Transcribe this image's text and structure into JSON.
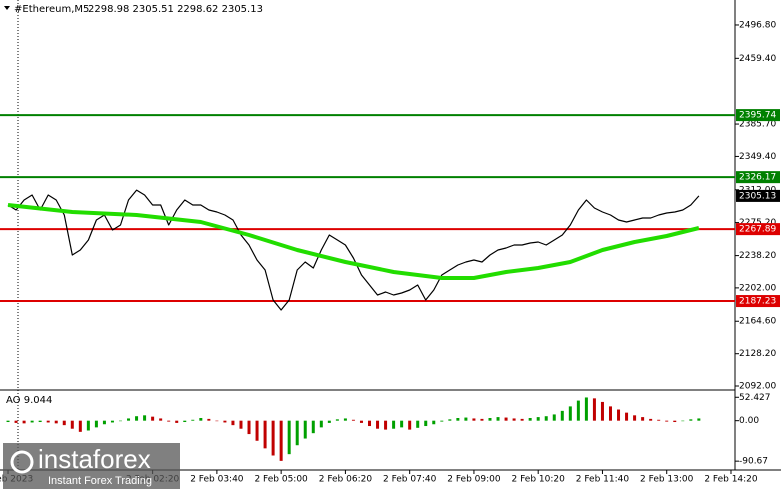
{
  "chart_data": [
    {
      "type": "line",
      "title": "#Ethereum,M5",
      "subtitle": "2298.98 2305.51 2298.62 2305.13",
      "x": [
        0,
        1,
        2,
        3,
        4,
        5,
        6,
        7,
        8,
        9,
        10,
        11,
        12,
        13,
        14,
        15,
        16,
        17,
        18,
        19,
        20,
        21,
        22,
        23,
        24,
        25,
        26,
        27,
        28,
        29,
        30,
        31,
        32,
        33,
        34,
        35,
        36,
        37,
        38,
        39,
        40,
        41,
        42,
        43,
        44,
        45,
        46,
        47,
        48,
        49,
        50,
        51,
        52,
        53,
        54,
        55,
        56,
        57,
        58,
        59,
        60,
        61,
        62,
        63,
        64,
        65,
        66,
        67,
        68,
        69,
        70,
        71,
        72,
        73,
        74,
        75,
        76,
        77,
        78,
        79,
        80,
        81,
        82,
        83,
        84,
        85,
        86
      ],
      "series": [
        {
          "color": "#000000",
          "values": [
            2294.9,
            2289.3,
            2300.5,
            2306.1,
            2289.3,
            2306.1,
            2300.5,
            2283.7,
            2238.9,
            2244.5,
            2255.7,
            2278.1,
            2283.7,
            2266.9,
            2272.5,
            2300.5,
            2311.7,
            2306.1,
            2294.9,
            2294.9,
            2272.5,
            2289.3,
            2300.5,
            2294.9,
            2294.9,
            2289.3,
            2287.1,
            2283.7,
            2278.1,
            2261.3,
            2250.1,
            2233.3,
            2222.0,
            2188.4,
            2177.2,
            2188.4,
            2222.0,
            2231.0,
            2224.3,
            2244.5,
            2261.3,
            2255.7,
            2250.1,
            2235.5,
            2216.4,
            2205.2,
            2194.0,
            2197.4,
            2194.0,
            2196.3,
            2199.6,
            2205.2,
            2188.4,
            2199.6,
            2216.4,
            2222.0,
            2227.7,
            2231.0,
            2233.3,
            2231.0,
            2238.9,
            2244.5,
            2246.7,
            2250.1,
            2250.1,
            2252.3,
            2253.4,
            2250.1,
            2255.7,
            2261.3,
            2272.5,
            2289.3,
            2300.5,
            2291.6,
            2287.1,
            2283.7,
            2278.1,
            2275.9,
            2278.1,
            2280.4,
            2280.4,
            2283.7,
            2286.0,
            2287.1,
            2289.3,
            2294.9,
            2305.13
          ]
        },
        {
          "color": "#22dd00",
          "x": [
            0,
            8,
            16,
            24,
            30,
            36,
            42,
            48,
            54,
            58,
            62,
            66,
            70,
            74,
            78,
            82,
            86
          ],
          "values": [
            2294.9,
            2287.1,
            2283.7,
            2275.9,
            2261.3,
            2244.5,
            2231.0,
            2219.8,
            2213.1,
            2213.1,
            2219.8,
            2224.3,
            2231.0,
            2244.5,
            2253.4,
            2260.2,
            2269.1
          ]
        }
      ],
      "levels": [
        {
          "value": 2395.74,
          "color": "#008000"
        },
        {
          "value": 2326.17,
          "color": "#008000"
        },
        {
          "value": 2267.89,
          "color": "#dd0000"
        },
        {
          "value": 2187.23,
          "color": "#dd0000"
        }
      ],
      "xlim": [
        -1,
        90.5
      ],
      "xticks": [
        {
          "value": 0,
          "label": "1 Feb 2023"
        },
        {
          "value": 18,
          "label": "2 Feb 02:20"
        },
        {
          "value": 26,
          "label": "2 Feb 03:40"
        },
        {
          "value": 34,
          "label": "2 Feb 05:00"
        },
        {
          "value": 42,
          "label": "2 Feb 06:20"
        },
        {
          "value": 50,
          "label": "2 Feb 07:40"
        },
        {
          "value": 58,
          "label": "2 Feb 09:00"
        },
        {
          "value": 66,
          "label": "2 Feb 10:20"
        },
        {
          "value": 74,
          "label": "2 Feb 11:40"
        },
        {
          "value": 82,
          "label": "2 Feb 13:00"
        },
        {
          "value": 90,
          "label": "2 Feb 14:20"
        }
      ],
      "ylim": [
        2087.5,
        2524.8
      ],
      "yticks": [
        {
          "value": 2496.8,
          "label": "2496.80"
        },
        {
          "value": 2459.4,
          "label": "2459.40"
        },
        {
          "value": 2385.7,
          "label": "2385.70"
        },
        {
          "value": 2349.4,
          "label": "2349.40"
        },
        {
          "value": 2312,
          "label": "2312.00"
        },
        {
          "value": 2275.2,
          "label": "2275.20"
        },
        {
          "value": 2238.2,
          "label": "2238.20"
        },
        {
          "value": 2202,
          "label": "2202.00"
        },
        {
          "value": 2164.6,
          "label": "2164.60"
        },
        {
          "value": 2128.2,
          "label": "2128.20"
        },
        {
          "value": 2092,
          "label": "2092.00"
        }
      ]
    },
    {
      "type": "bar",
      "title": "AO 9.044",
      "up_color": "#00a000",
      "down_color": "#c00000",
      "values": [
        -3,
        -5,
        -6,
        -4,
        -3,
        -4,
        -6,
        -10,
        -18,
        -25,
        -22,
        -15,
        -8,
        -4,
        0,
        5,
        10,
        12,
        9,
        5,
        -2,
        -5,
        -3,
        2,
        6,
        4,
        0,
        -4,
        -10,
        -18,
        -30,
        -45,
        -62,
        -78,
        -90,
        -75,
        -55,
        -40,
        -28,
        -15,
        -5,
        3,
        5,
        2,
        -5,
        -12,
        -18,
        -20,
        -18,
        -15,
        -20,
        -16,
        -12,
        -8,
        -2,
        3,
        6,
        7,
        5,
        4,
        6,
        8,
        7,
        5,
        4,
        6,
        8,
        10,
        14,
        22,
        32,
        45,
        52,
        50,
        42,
        32,
        25,
        18,
        12,
        8,
        4,
        2,
        -2,
        -3,
        0,
        3,
        5
      ],
      "xlim": [
        -1,
        90.5
      ],
      "ylim": [
        -106,
        62
      ],
      "yticks": [
        52.427,
        {
          "value": 0,
          "label": "0.00"
        },
        -90.67
      ]
    }
  ],
  "watermark": {
    "brand": "instaforex",
    "slogan": "Instant Forex Trading"
  }
}
